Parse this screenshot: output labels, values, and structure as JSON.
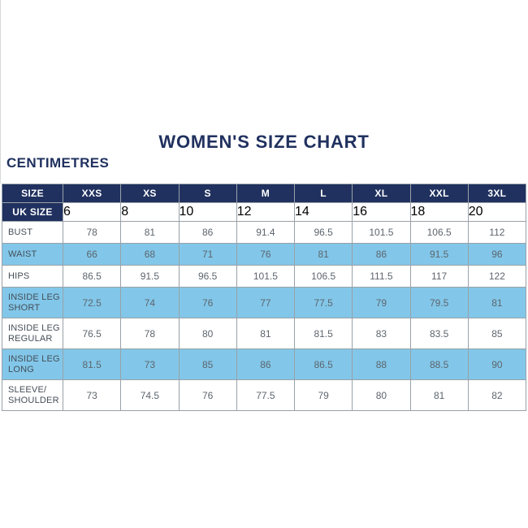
{
  "page": {
    "title": "WOMEN'S SIZE CHART",
    "unit_label": "CENTIMETRES"
  },
  "colors": {
    "navy": "#20315f",
    "light_blue": "#82c7e9",
    "border_gray": "#99a1a8",
    "header_text": "#ffffff",
    "label_text": "#454e58",
    "value_text": "#5d656d",
    "background": "#ffffff"
  },
  "chart_data": {
    "type": "table",
    "title": "WOMEN'S SIZE CHART",
    "unit": "CENTIMETRES",
    "columns": [
      "SIZE",
      "XXS",
      "XS",
      "S",
      "M",
      "L",
      "XL",
      "XXL",
      "3XL"
    ],
    "rows": [
      {
        "label": "UK SIZE",
        "style": "header",
        "values": [
          "6",
          "8",
          "10",
          "12",
          "14",
          "16",
          "18",
          "20"
        ]
      },
      {
        "label": "BUST",
        "style": "white",
        "values": [
          "78",
          "81",
          "86",
          "91.4",
          "96.5",
          "101.5",
          "106.5",
          "112"
        ]
      },
      {
        "label": "WAIST",
        "style": "blue",
        "values": [
          "66",
          "68",
          "71",
          "76",
          "81",
          "86",
          "91.5",
          "96"
        ]
      },
      {
        "label": "HIPS",
        "style": "white",
        "values": [
          "86.5",
          "91.5",
          "96.5",
          "101.5",
          "106.5",
          "111.5",
          "117",
          "122"
        ]
      },
      {
        "label": "INSIDE LEG SHORT",
        "style": "blue",
        "values": [
          "72.5",
          "74",
          "76",
          "77",
          "77.5",
          "79",
          "79.5",
          "81"
        ]
      },
      {
        "label": "INSIDE LEG REGULAR",
        "style": "white",
        "values": [
          "76.5",
          "78",
          "80",
          "81",
          "81.5",
          "83",
          "83.5",
          "85"
        ]
      },
      {
        "label": "INSIDE LEG LONG",
        "style": "blue",
        "values": [
          "81.5",
          "73",
          "85",
          "86",
          "86.5",
          "88",
          "88.5",
          "90"
        ]
      },
      {
        "label": "SLEEVE/ SHOULDER",
        "style": "white",
        "values": [
          "73",
          "74.5",
          "76",
          "77.5",
          "79",
          "80",
          "81",
          "82"
        ]
      }
    ]
  }
}
